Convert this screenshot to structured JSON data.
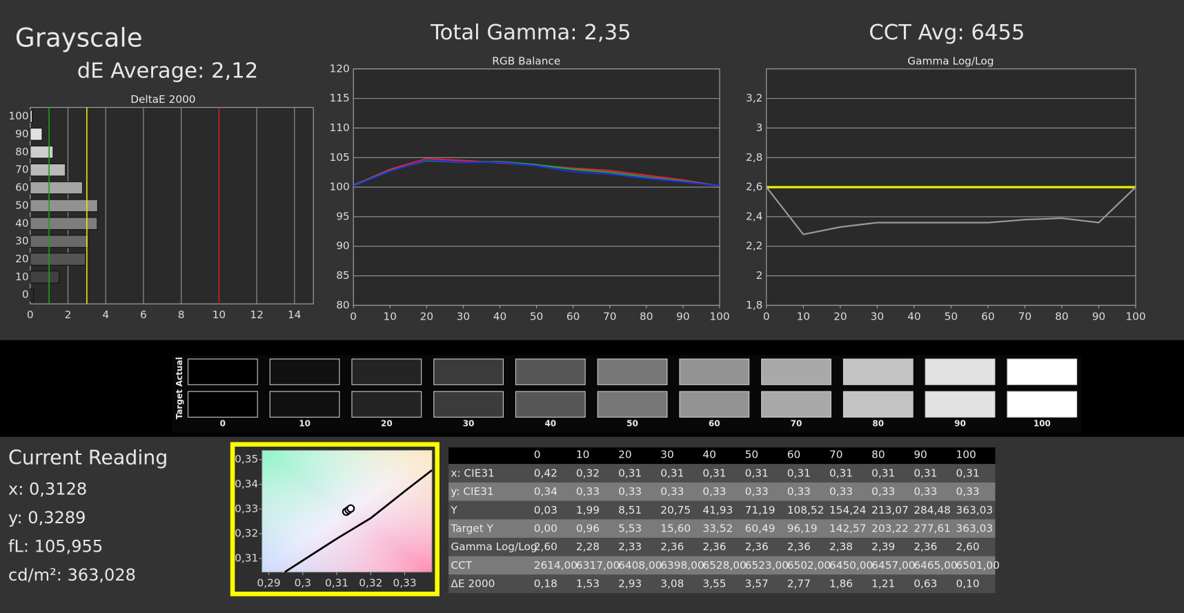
{
  "title": "Grayscale",
  "chart_data": [
    {
      "type": "bar",
      "orientation": "horizontal",
      "heading": "dE Average: 2,12",
      "title": "DeltaE 2000",
      "categories": [
        "0",
        "10",
        "20",
        "30",
        "40",
        "50",
        "60",
        "70",
        "80",
        "90",
        "100"
      ],
      "values": [
        0.18,
        1.53,
        2.93,
        3.08,
        3.55,
        3.57,
        2.77,
        1.86,
        1.21,
        0.63,
        0.1
      ],
      "xlim": [
        0,
        15
      ],
      "xticks": [
        0,
        2,
        4,
        6,
        8,
        10,
        12,
        14
      ],
      "grid": true,
      "reference_lines": [
        {
          "value": 1,
          "color": "#1e9e1e"
        },
        {
          "value": 3,
          "color": "#e8e800"
        },
        {
          "value": 10,
          "color": "#d02020"
        }
      ]
    },
    {
      "type": "line",
      "heading": "Total Gamma: 2,35",
      "title": "RGB Balance",
      "x": [
        0,
        10,
        20,
        30,
        40,
        50,
        60,
        70,
        80,
        90,
        100
      ],
      "xlim": [
        0,
        100
      ],
      "xticks": [
        0,
        10,
        20,
        30,
        40,
        50,
        60,
        70,
        80,
        90,
        100
      ],
      "ylim": [
        80,
        120
      ],
      "yticks": [
        80,
        85,
        90,
        95,
        100,
        105,
        110,
        115,
        120
      ],
      "grid": true,
      "series": [
        {
          "color": "#e0203a",
          "values": [
            100.3,
            103.0,
            104.8,
            104.5,
            104.1,
            103.7,
            103.2,
            102.8,
            102.0,
            101.2,
            100.2
          ]
        },
        {
          "color": "#20a040",
          "values": [
            100.3,
            102.8,
            104.5,
            104.2,
            104.3,
            103.8,
            103.0,
            102.5,
            101.7,
            101.0,
            100.2
          ]
        },
        {
          "color": "#2030e0",
          "values": [
            100.2,
            102.7,
            104.6,
            104.2,
            104.2,
            103.6,
            102.6,
            102.2,
            101.5,
            100.9,
            100.2
          ]
        }
      ]
    },
    {
      "type": "line",
      "heading": "CCT Avg: 6455",
      "title": "Gamma Log/Log",
      "x": [
        0,
        10,
        20,
        30,
        40,
        50,
        60,
        70,
        80,
        90,
        100
      ],
      "xlim": [
        0,
        100
      ],
      "xticks": [
        0,
        10,
        20,
        30,
        40,
        50,
        60,
        70,
        80,
        90,
        100
      ],
      "ylim": [
        1.8,
        3.4
      ],
      "yticks": [
        {
          "value": 1.8,
          "label": "1,8"
        },
        2,
        {
          "value": 2.2,
          "label": "2,2"
        },
        {
          "value": 2.4,
          "label": "2,4"
        },
        {
          "value": 2.6,
          "label": "2,6"
        },
        {
          "value": 2.8,
          "label": "2,8"
        },
        3,
        {
          "value": 3.2,
          "label": "3,2"
        }
      ],
      "grid": true,
      "reference_lines": [
        {
          "value": 2.6,
          "color": "#f0f000"
        }
      ],
      "series": [
        {
          "color": "#9a9a9a",
          "values": [
            2.6,
            2.28,
            2.33,
            2.36,
            2.36,
            2.36,
            2.36,
            2.38,
            2.39,
            2.36,
            2.6
          ]
        }
      ]
    },
    {
      "type": "scatter",
      "xlim": [
        0.288,
        0.338
      ],
      "ylim": [
        0.3045,
        0.3537
      ],
      "xticks": [
        {
          "value": 0.29,
          "label": "0,29"
        },
        {
          "value": 0.3,
          "label": "0,3"
        },
        {
          "value": 0.31,
          "label": "0,31"
        },
        {
          "value": 0.32,
          "label": "0,32"
        },
        {
          "value": 0.33,
          "label": "0,33"
        }
      ],
      "yticks": [
        {
          "value": 0.31,
          "label": "0,31"
        },
        {
          "value": 0.32,
          "label": "0,32"
        },
        {
          "value": 0.33,
          "label": "0,33"
        },
        {
          "value": 0.34,
          "label": "0,34"
        },
        {
          "value": 0.35,
          "label": "0,35"
        }
      ],
      "series": [
        {
          "style": "line",
          "color": "#000000",
          "x": [
            0.2947,
            0.31,
            0.32,
            0.33,
            0.338
          ],
          "values": [
            0.3045,
            0.318,
            0.3263,
            0.3372,
            0.3457
          ]
        },
        {
          "style": "points",
          "color": "#000000",
          "x": [
            0.3128,
            0.3135,
            0.3141
          ],
          "values": [
            0.3289,
            0.3296,
            0.3302
          ]
        }
      ]
    }
  ],
  "swatches": {
    "labels": [
      "Actual",
      "Target"
    ],
    "levels": [
      "0",
      "10",
      "20",
      "30",
      "40",
      "50",
      "60",
      "70",
      "80",
      "90",
      "100"
    ],
    "colors": [
      "#000000",
      "#111111",
      "#242424",
      "#3b3b3b",
      "#565656",
      "#777777",
      "#939393",
      "#a9a9a9",
      "#c4c4c4",
      "#e2e2e2",
      "#ffffff"
    ]
  },
  "current_reading": {
    "title": "Current Reading",
    "lines": [
      "x: 0,3128",
      "y: 0,3289",
      "fL: 105,955",
      "cd/m²: 363,028"
    ]
  },
  "table": {
    "columns": [
      "0",
      "10",
      "20",
      "30",
      "40",
      "50",
      "60",
      "70",
      "80",
      "90",
      "100"
    ],
    "rows": [
      {
        "label": "x: CIE31",
        "values": [
          "0,42",
          "0,32",
          "0,31",
          "0,31",
          "0,31",
          "0,31",
          "0,31",
          "0,31",
          "0,31",
          "0,31",
          "0,31"
        ]
      },
      {
        "label": "y: CIE31",
        "values": [
          "0,34",
          "0,33",
          "0,33",
          "0,33",
          "0,33",
          "0,33",
          "0,33",
          "0,33",
          "0,33",
          "0,33",
          "0,33"
        ]
      },
      {
        "label": "Y",
        "values": [
          "0,03",
          "1,99",
          "8,51",
          "20,75",
          "41,93",
          "71,19",
          "108,52",
          "154,24",
          "213,07",
          "284,48",
          "363,03"
        ]
      },
      {
        "label": "Target Y",
        "values": [
          "0,00",
          "0,96",
          "5,53",
          "15,60",
          "33,52",
          "60,49",
          "96,19",
          "142,57",
          "203,22",
          "277,61",
          "363,03"
        ]
      },
      {
        "label": "Gamma Log/Log",
        "values": [
          "2,60",
          "2,28",
          "2,33",
          "2,36",
          "2,36",
          "2,36",
          "2,36",
          "2,38",
          "2,39",
          "2,36",
          "2,60"
        ]
      },
      {
        "label": "CCT",
        "values": [
          "2614,00",
          "6317,00",
          "6408,00",
          "6398,00",
          "6528,00",
          "6523,00",
          "6502,00",
          "6450,00",
          "6457,00",
          "6465,00",
          "6501,00"
        ]
      },
      {
        "label": "ΔE 2000",
        "values": [
          "0,18",
          "1,53",
          "2,93",
          "3,08",
          "3,55",
          "3,57",
          "2,77",
          "1,86",
          "1,21",
          "0,63",
          "0,10"
        ]
      }
    ]
  }
}
